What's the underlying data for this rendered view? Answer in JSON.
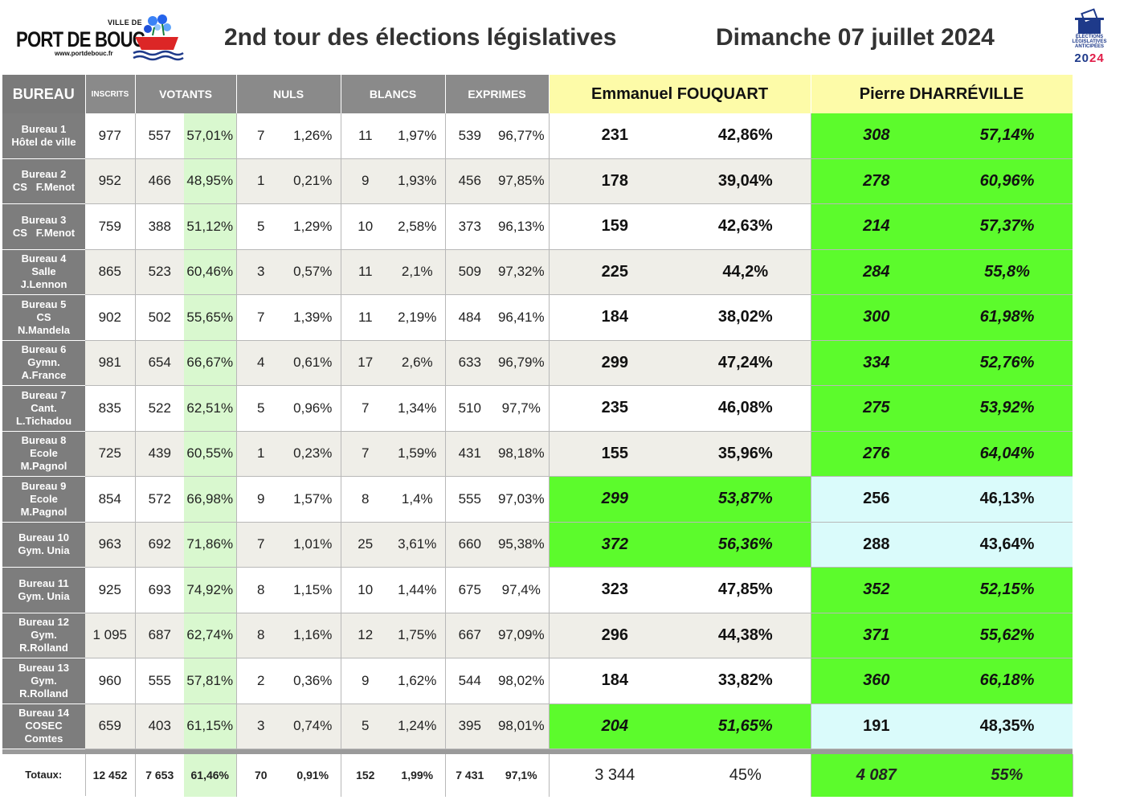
{
  "header": {
    "logo_ville": "VILLE DE",
    "logo_name": "PORT DE BOUC",
    "logo_site": "www.portdebouc.fr",
    "title": "2nd tour des élections législatives",
    "date": "Dimanche 07 juillet 2024",
    "badge_line1": "ÉLECTIONS",
    "badge_line2": "LÉGISLATIVES",
    "badge_line3": "ANTICIPÉES",
    "badge_year_a": "20",
    "badge_year_b": "24"
  },
  "columns": {
    "bureau": "BUREAU",
    "inscrits": "INSCRITS",
    "votants": "VOTANTS",
    "nuls": "NULS",
    "blancs": "BLANCS",
    "exprimes": "EXPRIMES",
    "candidate1": "Emmanuel FOUQUART",
    "candidate2": "Pierre DHARRÉVILLE"
  },
  "colors": {
    "winner": "#5cfb2c",
    "loser": "#dafbfb",
    "candidate_header": "#fdfba8",
    "votants_pct": "#d9f8cf",
    "bureau_label": "#7d7d7d"
  },
  "rows": [
    {
      "l1": "Bureau 1",
      "l2": "Hôtel de ville",
      "l3": "",
      "inscrits": "977",
      "votants": "557",
      "votants_pct": "57,01%",
      "nuls": "7",
      "nuls_pct": "1,26%",
      "blancs": "11",
      "blancs_pct": "1,97%",
      "exprimes": "539",
      "exprimes_pct": "96,77%",
      "c1": "231",
      "c1_pct": "42,86%",
      "c2": "308",
      "c2_pct": "57,14%",
      "winner": "c2"
    },
    {
      "l1": "Bureau 2",
      "l2": "CS   F.Menot",
      "l3": "",
      "inscrits": "952",
      "votants": "466",
      "votants_pct": "48,95%",
      "nuls": "1",
      "nuls_pct": "0,21%",
      "blancs": "9",
      "blancs_pct": "1,93%",
      "exprimes": "456",
      "exprimes_pct": "97,85%",
      "c1": "178",
      "c1_pct": "39,04%",
      "c2": "278",
      "c2_pct": "60,96%",
      "winner": "c2"
    },
    {
      "l1": "Bureau 3",
      "l2": "CS   F.Menot",
      "l3": "",
      "inscrits": "759",
      "votants": "388",
      "votants_pct": "51,12%",
      "nuls": "5",
      "nuls_pct": "1,29%",
      "blancs": "10",
      "blancs_pct": "2,58%",
      "exprimes": "373",
      "exprimes_pct": "96,13%",
      "c1": "159",
      "c1_pct": "42,63%",
      "c2": "214",
      "c2_pct": "57,37%",
      "winner": "c2"
    },
    {
      "l1": "Bureau 4",
      "l2": "Salle",
      "l3": "J.Lennon",
      "inscrits": "865",
      "votants": "523",
      "votants_pct": "60,46%",
      "nuls": "3",
      "nuls_pct": "0,57%",
      "blancs": "11",
      "blancs_pct": "2,1%",
      "exprimes": "509",
      "exprimes_pct": "97,32%",
      "c1": "225",
      "c1_pct": "44,2%",
      "c2": "284",
      "c2_pct": "55,8%",
      "winner": "c2"
    },
    {
      "l1": "Bureau 5",
      "l2": "CS",
      "l3": "N.Mandela",
      "inscrits": "902",
      "votants": "502",
      "votants_pct": "55,65%",
      "nuls": "7",
      "nuls_pct": "1,39%",
      "blancs": "11",
      "blancs_pct": "2,19%",
      "exprimes": "484",
      "exprimes_pct": "96,41%",
      "c1": "184",
      "c1_pct": "38,02%",
      "c2": "300",
      "c2_pct": "61,98%",
      "winner": "c2"
    },
    {
      "l1": "Bureau 6",
      "l2": "Gymn.",
      "l3": "A.France",
      "inscrits": "981",
      "votants": "654",
      "votants_pct": "66,67%",
      "nuls": "4",
      "nuls_pct": "0,61%",
      "blancs": "17",
      "blancs_pct": "2,6%",
      "exprimes": "633",
      "exprimes_pct": "96,79%",
      "c1": "299",
      "c1_pct": "47,24%",
      "c2": "334",
      "c2_pct": "52,76%",
      "winner": "c2"
    },
    {
      "l1": "Bureau 7",
      "l2": "Cant.",
      "l3": "L.Tichadou",
      "inscrits": "835",
      "votants": "522",
      "votants_pct": "62,51%",
      "nuls": "5",
      "nuls_pct": "0,96%",
      "blancs": "7",
      "blancs_pct": "1,34%",
      "exprimes": "510",
      "exprimes_pct": "97,7%",
      "c1": "235",
      "c1_pct": "46,08%",
      "c2": "275",
      "c2_pct": "53,92%",
      "winner": "c2"
    },
    {
      "l1": "Bureau 8",
      "l2": "Ecole",
      "l3": "M.Pagnol",
      "inscrits": "725",
      "votants": "439",
      "votants_pct": "60,55%",
      "nuls": "1",
      "nuls_pct": "0,23%",
      "blancs": "7",
      "blancs_pct": "1,59%",
      "exprimes": "431",
      "exprimes_pct": "98,18%",
      "c1": "155",
      "c1_pct": "35,96%",
      "c2": "276",
      "c2_pct": "64,04%",
      "winner": "c2"
    },
    {
      "l1": "Bureau 9",
      "l2": "Ecole",
      "l3": "M.Pagnol",
      "inscrits": "854",
      "votants": "572",
      "votants_pct": "66,98%",
      "nuls": "9",
      "nuls_pct": "1,57%",
      "blancs": "8",
      "blancs_pct": "1,4%",
      "exprimes": "555",
      "exprimes_pct": "97,03%",
      "c1": "299",
      "c1_pct": "53,87%",
      "c2": "256",
      "c2_pct": "46,13%",
      "winner": "c1"
    },
    {
      "l1": "Bureau 10",
      "l2": "Gym. Unia",
      "l3": "",
      "inscrits": "963",
      "votants": "692",
      "votants_pct": "71,86%",
      "nuls": "7",
      "nuls_pct": "1,01%",
      "blancs": "25",
      "blancs_pct": "3,61%",
      "exprimes": "660",
      "exprimes_pct": "95,38%",
      "c1": "372",
      "c1_pct": "56,36%",
      "c2": "288",
      "c2_pct": "43,64%",
      "winner": "c1"
    },
    {
      "l1": "Bureau 11",
      "l2": "Gym. Unia",
      "l3": "",
      "inscrits": "925",
      "votants": "693",
      "votants_pct": "74,92%",
      "nuls": "8",
      "nuls_pct": "1,15%",
      "blancs": "10",
      "blancs_pct": "1,44%",
      "exprimes": "675",
      "exprimes_pct": "97,4%",
      "c1": "323",
      "c1_pct": "47,85%",
      "c2": "352",
      "c2_pct": "52,15%",
      "winner": "c2"
    },
    {
      "l1": "Bureau 12",
      "l2": "Gym.",
      "l3": "R.Rolland",
      "inscrits": "1 095",
      "votants": "687",
      "votants_pct": "62,74%",
      "nuls": "8",
      "nuls_pct": "1,16%",
      "blancs": "12",
      "blancs_pct": "1,75%",
      "exprimes": "667",
      "exprimes_pct": "97,09%",
      "c1": "296",
      "c1_pct": "44,38%",
      "c2": "371",
      "c2_pct": "55,62%",
      "winner": "c2"
    },
    {
      "l1": "Bureau 13",
      "l2": "Gym.",
      "l3": "R.Rolland",
      "inscrits": "960",
      "votants": "555",
      "votants_pct": "57,81%",
      "nuls": "2",
      "nuls_pct": "0,36%",
      "blancs": "9",
      "blancs_pct": "1,62%",
      "exprimes": "544",
      "exprimes_pct": "98,02%",
      "c1": "184",
      "c1_pct": "33,82%",
      "c2": "360",
      "c2_pct": "66,18%",
      "winner": "c2"
    },
    {
      "l1": "Bureau 14",
      "l2": "COSEC",
      "l3": "Comtes",
      "inscrits": "659",
      "votants": "403",
      "votants_pct": "61,15%",
      "nuls": "3",
      "nuls_pct": "0,74%",
      "blancs": "5",
      "blancs_pct": "1,24%",
      "exprimes": "395",
      "exprimes_pct": "98,01%",
      "c1": "204",
      "c1_pct": "51,65%",
      "c2": "191",
      "c2_pct": "48,35%",
      "winner": "c1"
    }
  ],
  "totals": {
    "label": "Totaux:",
    "inscrits": "12 452",
    "votants": "7 653",
    "votants_pct": "61,46%",
    "nuls": "70",
    "nuls_pct": "0,91%",
    "blancs": "152",
    "blancs_pct": "1,99%",
    "exprimes": "7 431",
    "exprimes_pct": "97,1%",
    "c1": "3 344",
    "c1_pct": "45%",
    "c2": "4 087",
    "c2_pct": "55%"
  }
}
